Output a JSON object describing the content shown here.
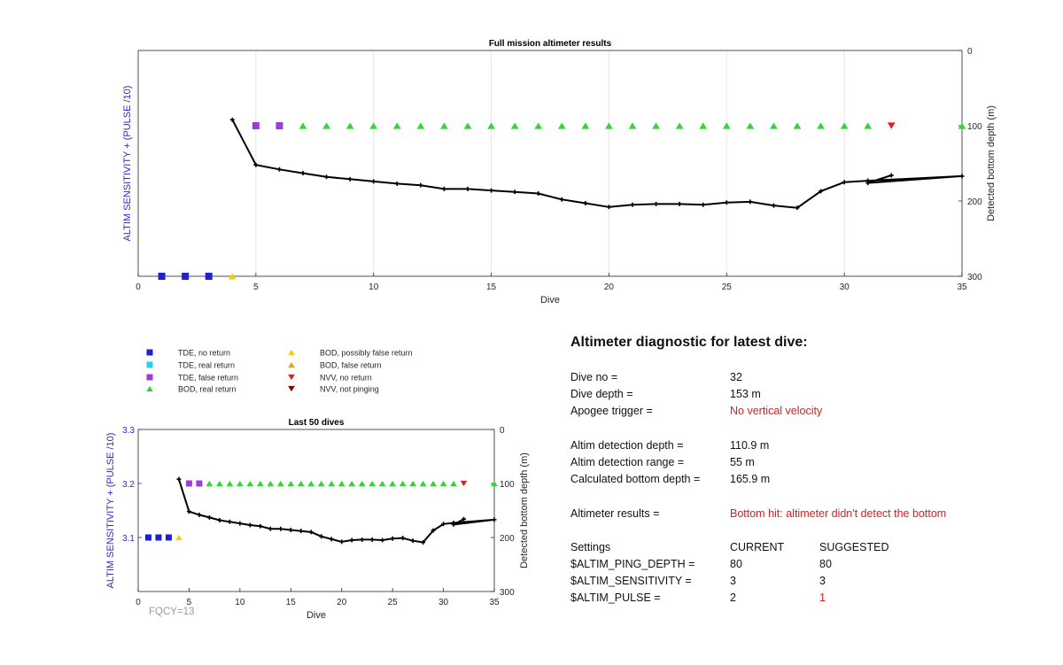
{
  "colors": {
    "tde_no_return": "#1f1fd6",
    "tde_real_return": "#22d3ee",
    "tde_false_return": "#9b3fd4",
    "bod_real_return": "#33d633",
    "bod_possibly_false": "#f2d000",
    "bod_false_return": "#f0a020",
    "nvv_no_return": "#e02020",
    "nvv_not_pinging": "#8b0000",
    "left_axis_text": "#2b2bcc",
    "warning_text": "#d42020"
  },
  "legend": {
    "items": [
      {
        "label": "TDE, no return",
        "marker": "square",
        "color_key": "tde_no_return"
      },
      {
        "label": "TDE, real return",
        "marker": "square",
        "color_key": "tde_real_return"
      },
      {
        "label": "TDE, false return",
        "marker": "square",
        "color_key": "tde_false_return"
      },
      {
        "label": "BOD, real return",
        "marker": "triangle-up",
        "color_key": "bod_real_return"
      },
      {
        "label": "BOD, possibly false return",
        "marker": "triangle-up",
        "color_key": "bod_possibly_false"
      },
      {
        "label": "BOD, false return",
        "marker": "triangle-up",
        "color_key": "bod_false_return"
      },
      {
        "label": "NVV, no return",
        "marker": "triangle-down",
        "color_key": "nvv_no_return"
      },
      {
        "label": "NVV, not pinging",
        "marker": "triangle-down",
        "color_key": "nvv_not_pinging"
      }
    ]
  },
  "chart_data": [
    {
      "type": "scatter+line",
      "title": "Full mission altimeter results",
      "xlabel": "Dive",
      "ylabel_left": "ALTIM SENSITIVITY + (PULSE /10)",
      "ylabel_right": "Detected bottom depth (m)",
      "xlim": [
        0,
        35
      ],
      "xticks": [
        0,
        5,
        10,
        15,
        20,
        25,
        30,
        35
      ],
      "ylim_right": [
        0,
        300
      ],
      "yticks_right": [
        0,
        100,
        200,
        300
      ],
      "yticks_left": [],
      "grid": "vertical",
      "marker_series": [
        {
          "category": "tde_no_return",
          "points": [
            [
              1,
              300
            ],
            [
              2,
              300
            ],
            [
              3,
              300
            ]
          ]
        },
        {
          "category": "bod_possibly_false",
          "points": [
            [
              4,
              300
            ]
          ]
        },
        {
          "category": "tde_false_return",
          "points": [
            [
              5,
              100
            ],
            [
              6,
              100
            ]
          ]
        },
        {
          "category": "bod_real_return",
          "points": [
            [
              7,
              100
            ],
            [
              8,
              100
            ],
            [
              9,
              100
            ],
            [
              10,
              100
            ],
            [
              11,
              100
            ],
            [
              12,
              100
            ],
            [
              13,
              100
            ],
            [
              14,
              100
            ],
            [
              15,
              100
            ],
            [
              16,
              100
            ],
            [
              17,
              100
            ],
            [
              18,
              100
            ],
            [
              19,
              100
            ],
            [
              20,
              100
            ],
            [
              21,
              100
            ],
            [
              22,
              100
            ],
            [
              23,
              100
            ],
            [
              24,
              100
            ],
            [
              25,
              100
            ],
            [
              26,
              100
            ],
            [
              27,
              100
            ],
            [
              28,
              100
            ],
            [
              29,
              100
            ],
            [
              30,
              100
            ],
            [
              31,
              100
            ],
            [
              35,
              100
            ]
          ]
        },
        {
          "category": "nvv_no_return",
          "points": [
            [
              32,
              100
            ]
          ]
        }
      ],
      "bottom_depth_line": [
        [
          4,
          92
        ],
        [
          5,
          152
        ],
        [
          6,
          158
        ],
        [
          7,
          163
        ],
        [
          8,
          168
        ],
        [
          9,
          171
        ],
        [
          10,
          174
        ],
        [
          11,
          177
        ],
        [
          12,
          179
        ],
        [
          13,
          184
        ],
        [
          14,
          184
        ],
        [
          15,
          186
        ],
        [
          16,
          188
        ],
        [
          17,
          190
        ],
        [
          18,
          198
        ],
        [
          19,
          203
        ],
        [
          20,
          208
        ],
        [
          21,
          205
        ],
        [
          22,
          204
        ],
        [
          23,
          204
        ],
        [
          24,
          205
        ],
        [
          25,
          202
        ],
        [
          26,
          201
        ],
        [
          27,
          206
        ],
        [
          28,
          209
        ],
        [
          29,
          187
        ],
        [
          30,
          175
        ],
        [
          31,
          173
        ],
        [
          35,
          167
        ],
        [
          31,
          176
        ],
        [
          32,
          165.9
        ]
      ]
    },
    {
      "type": "scatter+line",
      "title": "Last 50 dives",
      "xlabel": "Dive",
      "ylabel_left": "ALTIM SENSITIVITY + (PULSE /10)",
      "ylabel_right": "Detected bottom depth (m)",
      "xlim": [
        0,
        35
      ],
      "xticks": [
        0,
        5,
        10,
        15,
        20,
        25,
        30,
        35
      ],
      "ylim_left": [
        3.0,
        3.3
      ],
      "yticks_left": [
        3.1,
        3.2,
        3.3
      ],
      "ylim_right": [
        0,
        300
      ],
      "yticks_right": [
        0,
        100,
        200,
        300
      ],
      "grid": "none",
      "annotation": "FQCY=13",
      "marker_series": [
        {
          "category": "tde_no_return",
          "points": [
            [
              1,
              3.1
            ],
            [
              2,
              3.1
            ],
            [
              3,
              3.1
            ]
          ]
        },
        {
          "category": "bod_possibly_false",
          "points": [
            [
              4,
              3.1
            ]
          ]
        },
        {
          "category": "tde_false_return",
          "points": [
            [
              5,
              3.2
            ],
            [
              6,
              3.2
            ]
          ]
        },
        {
          "category": "bod_real_return",
          "points": [
            [
              7,
              3.2
            ],
            [
              8,
              3.2
            ],
            [
              9,
              3.2
            ],
            [
              10,
              3.2
            ],
            [
              11,
              3.2
            ],
            [
              12,
              3.2
            ],
            [
              13,
              3.2
            ],
            [
              14,
              3.2
            ],
            [
              15,
              3.2
            ],
            [
              16,
              3.2
            ],
            [
              17,
              3.2
            ],
            [
              18,
              3.2
            ],
            [
              19,
              3.2
            ],
            [
              20,
              3.2
            ],
            [
              21,
              3.2
            ],
            [
              22,
              3.2
            ],
            [
              23,
              3.2
            ],
            [
              24,
              3.2
            ],
            [
              25,
              3.2
            ],
            [
              26,
              3.2
            ],
            [
              27,
              3.2
            ],
            [
              28,
              3.2
            ],
            [
              29,
              3.2
            ],
            [
              30,
              3.2
            ],
            [
              31,
              3.2
            ],
            [
              35,
              3.2
            ]
          ]
        },
        {
          "category": "nvv_no_return",
          "points": [
            [
              32,
              3.2
            ]
          ]
        }
      ],
      "bottom_depth_line": [
        [
          4,
          92
        ],
        [
          5,
          152
        ],
        [
          6,
          158
        ],
        [
          7,
          163
        ],
        [
          8,
          168
        ],
        [
          9,
          171
        ],
        [
          10,
          174
        ],
        [
          11,
          177
        ],
        [
          12,
          179
        ],
        [
          13,
          184
        ],
        [
          14,
          184
        ],
        [
          15,
          186
        ],
        [
          16,
          188
        ],
        [
          17,
          190
        ],
        [
          18,
          198
        ],
        [
          19,
          203
        ],
        [
          20,
          208
        ],
        [
          21,
          205
        ],
        [
          22,
          204
        ],
        [
          23,
          204
        ],
        [
          24,
          205
        ],
        [
          25,
          202
        ],
        [
          26,
          201
        ],
        [
          27,
          206
        ],
        [
          28,
          209
        ],
        [
          29,
          187
        ],
        [
          30,
          175
        ],
        [
          31,
          173
        ],
        [
          35,
          167
        ],
        [
          31,
          176
        ],
        [
          32,
          165.9
        ]
      ]
    }
  ],
  "diagnostic": {
    "title": "Altimeter diagnostic for latest dive:",
    "dive_no_label": "Dive no =",
    "dive_no": "32",
    "dive_depth_label": "Dive depth =",
    "dive_depth": "153 m",
    "apogee_label": "Apogee trigger =",
    "apogee": "No vertical velocity",
    "detect_depth_label": "Altim detection depth =",
    "detect_depth": "110.9 m",
    "detect_range_label": "Altim detection range =",
    "detect_range": "55 m",
    "calc_bottom_label": "Calculated bottom depth =",
    "calc_bottom": "165.9 m",
    "results_label": "Altimeter results =",
    "results": "Bottom hit: altimeter didn't detect the bottom",
    "settings_label": "Settings",
    "current_label": "CURRENT",
    "suggested_label": "SUGGESTED",
    "settings": [
      {
        "name": "$ALTIM_PING_DEPTH =",
        "current": "80",
        "suggested": "80",
        "changed": false
      },
      {
        "name": "$ALTIM_SENSITIVITY =",
        "current": "3",
        "suggested": "3",
        "changed": false
      },
      {
        "name": "$ALTIM_PULSE =",
        "current": "2",
        "suggested": "1",
        "changed": true
      }
    ]
  }
}
